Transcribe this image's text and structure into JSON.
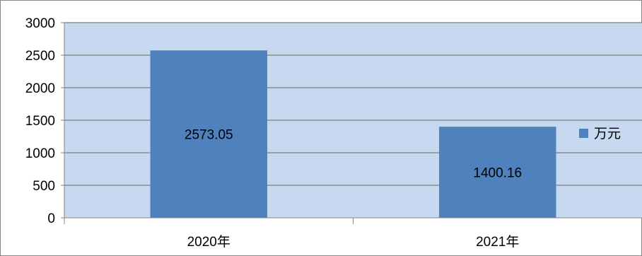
{
  "chart_data": {
    "type": "bar",
    "categories": [
      "2020年",
      "2021年"
    ],
    "series": [
      {
        "name": "万元",
        "values": [
          2573.05,
          1400.16
        ],
        "data_labels": [
          "2573.05",
          "1400.16"
        ]
      }
    ],
    "ylim": [
      0,
      3000
    ],
    "yticks": [
      "0",
      "500",
      "1000",
      "1500",
      "2000",
      "2500",
      "3000"
    ],
    "grid": true,
    "legend_position": "right",
    "colors": {
      "bar": "#4f81bd",
      "plot_background": "#c6d9f1",
      "gridline": "#7f7f7f",
      "border": "#868686"
    }
  }
}
